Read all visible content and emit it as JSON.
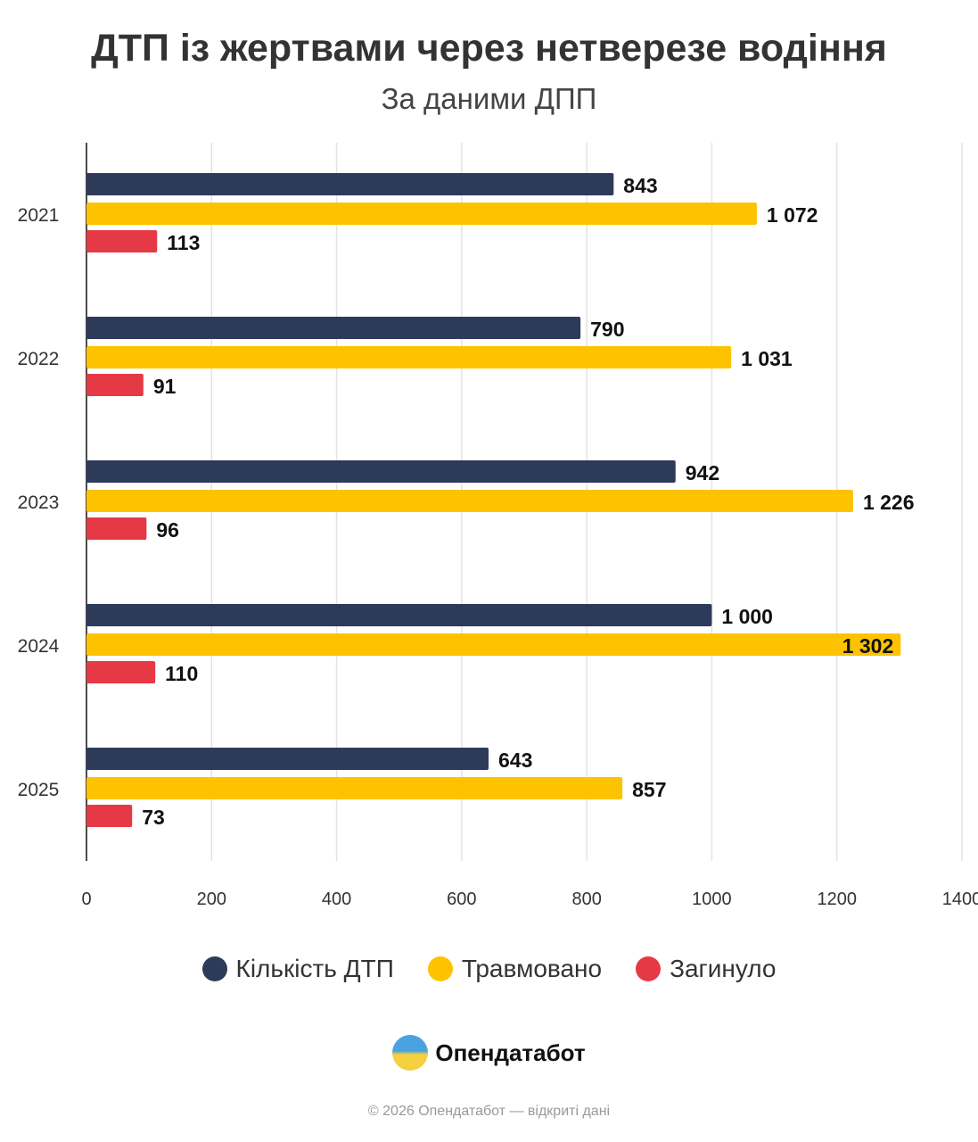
{
  "chart_data": {
    "type": "bar",
    "orientation": "horizontal",
    "title": "ДТП із жертвами через нетверезе водіння",
    "subtitle": "За даними ДПП",
    "categories": [
      "2021",
      "2022",
      "2023",
      "2024",
      "2025"
    ],
    "series": [
      {
        "name": "Кількість ДТП",
        "color": "#2d3a5a",
        "values": [
          843,
          790,
          942,
          1000,
          643
        ],
        "labels": [
          "843",
          "790",
          "942",
          "1 000",
          "643"
        ]
      },
      {
        "name": "Травмовано",
        "color": "#fdc300",
        "values": [
          1072,
          1031,
          1226,
          1302,
          857
        ],
        "labels": [
          "1 072",
          "1 031",
          "1 226",
          "1 302",
          "857"
        ]
      },
      {
        "name": "Загинуло",
        "color": "#e63946",
        "values": [
          113,
          91,
          96,
          110,
          73
        ],
        "labels": [
          "113",
          "91",
          "96",
          "110",
          "73"
        ]
      }
    ],
    "xlim": [
      0,
      1400
    ],
    "xticks": [
      "0",
      "200",
      "400",
      "600",
      "800",
      "1000",
      "1200",
      "1400"
    ],
    "grid": true,
    "legend": "bottom"
  },
  "brand": {
    "name": "Опендатабот",
    "footer": "© 2026 Опендатабот — відкриті дані"
  }
}
